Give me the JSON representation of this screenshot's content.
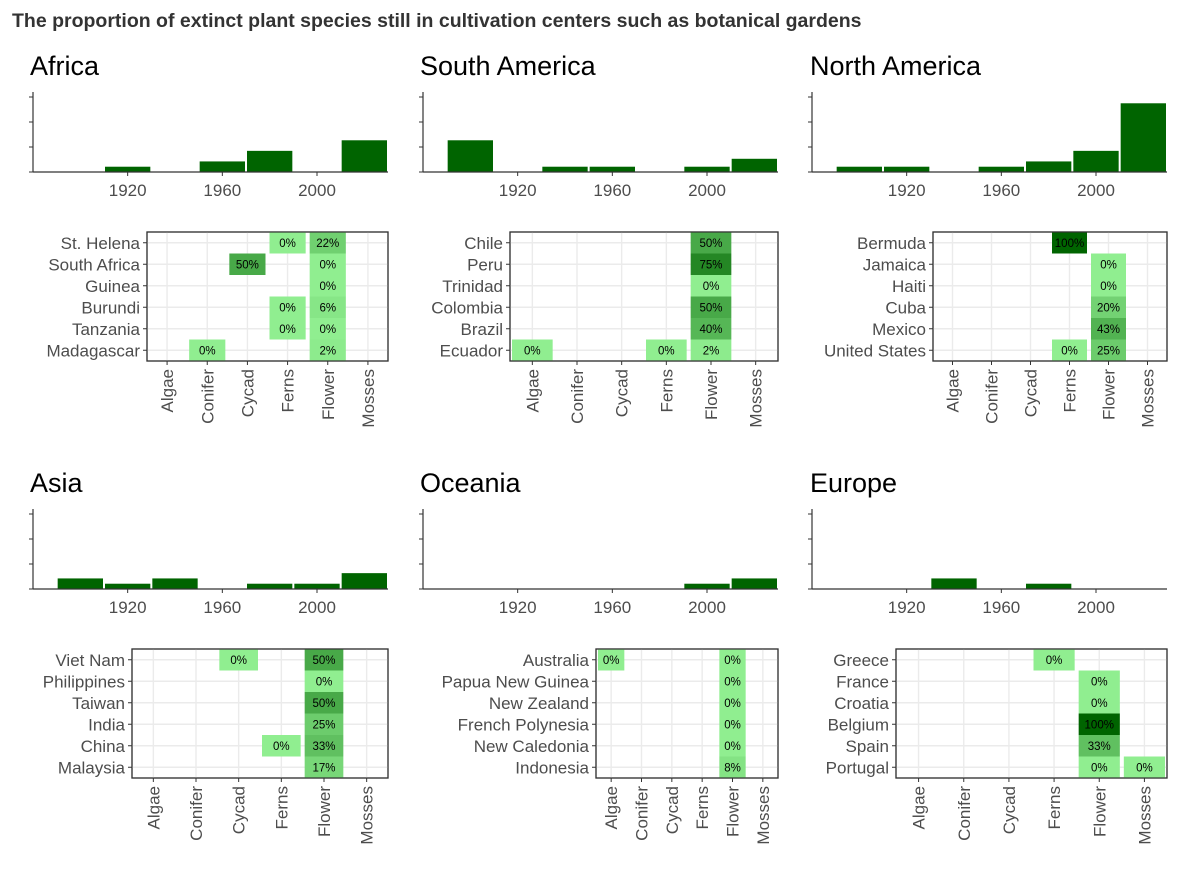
{
  "title": "The proportion of extinct plant species still in cultivation centers such as botanical gardens",
  "colors": {
    "bar": "#006400",
    "grid": "#ebebeb",
    "axis": "#333333",
    "scale": [
      "#90ee90",
      "#006400"
    ]
  },
  "chart_data": [
    {
      "region": "Africa",
      "hist": {
        "type": "bar",
        "decades": [
          1910,
          1950,
          1970,
          2010
        ],
        "counts": [
          1,
          2,
          4,
          6
        ]
      },
      "heatmap": {
        "type": "heatmap",
        "rows": [
          "St. Helena",
          "South Africa",
          "Guinea",
          "Burundi",
          "Tanzania",
          "Madagascar"
        ],
        "cols": [
          "Algae",
          "Conifer",
          "Cycad",
          "Ferns",
          "Flower",
          "Mosses"
        ],
        "cells": [
          {
            "row": "St. Helena",
            "col": "Ferns",
            "value": 0,
            "label": "0%"
          },
          {
            "row": "St. Helena",
            "col": "Flower",
            "value": 22,
            "label": "22%"
          },
          {
            "row": "South Africa",
            "col": "Cycad",
            "value": 50,
            "label": "50%"
          },
          {
            "row": "South Africa",
            "col": "Flower",
            "value": 0,
            "label": "0%"
          },
          {
            "row": "Guinea",
            "col": "Flower",
            "value": 0,
            "label": "0%"
          },
          {
            "row": "Burundi",
            "col": "Ferns",
            "value": 0,
            "label": "0%"
          },
          {
            "row": "Burundi",
            "col": "Flower",
            "value": 6,
            "label": "6%"
          },
          {
            "row": "Tanzania",
            "col": "Ferns",
            "value": 0,
            "label": "0%"
          },
          {
            "row": "Tanzania",
            "col": "Flower",
            "value": 0,
            "label": "0%"
          },
          {
            "row": "Madagascar",
            "col": "Conifer",
            "value": 0,
            "label": "0%"
          },
          {
            "row": "Madagascar",
            "col": "Flower",
            "value": 2,
            "label": "2%"
          }
        ]
      }
    },
    {
      "region": "South America",
      "hist": {
        "type": "bar",
        "decades": [
          1890,
          1930,
          1950,
          1990,
          2010
        ],
        "counts": [
          6,
          1,
          1,
          1,
          2.5
        ]
      },
      "heatmap": {
        "type": "heatmap",
        "rows": [
          "Chile",
          "Peru",
          "Trinidad",
          "Colombia",
          "Brazil",
          "Ecuador"
        ],
        "cols": [
          "Algae",
          "Conifer",
          "Cycad",
          "Ferns",
          "Flower",
          "Mosses"
        ],
        "cells": [
          {
            "row": "Chile",
            "col": "Flower",
            "value": 50,
            "label": "50%"
          },
          {
            "row": "Peru",
            "col": "Flower",
            "value": 75,
            "label": "75%"
          },
          {
            "row": "Trinidad",
            "col": "Flower",
            "value": 0,
            "label": "0%"
          },
          {
            "row": "Colombia",
            "col": "Flower",
            "value": 50,
            "label": "50%"
          },
          {
            "row": "Brazil",
            "col": "Flower",
            "value": 40,
            "label": "40%"
          },
          {
            "row": "Ecuador",
            "col": "Algae",
            "value": 0,
            "label": "0%"
          },
          {
            "row": "Ecuador",
            "col": "Ferns",
            "value": 0,
            "label": "0%"
          },
          {
            "row": "Ecuador",
            "col": "Flower",
            "value": 2,
            "label": "2%"
          }
        ]
      }
    },
    {
      "region": "North America",
      "hist": {
        "type": "bar",
        "decades": [
          1890,
          1910,
          1950,
          1970,
          1990,
          2010
        ],
        "counts": [
          1,
          1,
          1,
          2,
          4,
          13
        ]
      },
      "heatmap": {
        "type": "heatmap",
        "rows": [
          "Bermuda",
          "Jamaica",
          "Haiti",
          "Cuba",
          "Mexico",
          "United States"
        ],
        "cols": [
          "Algae",
          "Conifer",
          "Cycad",
          "Ferns",
          "Flower",
          "Mosses"
        ],
        "cells": [
          {
            "row": "Bermuda",
            "col": "Ferns",
            "value": 100,
            "label": "100%"
          },
          {
            "row": "Jamaica",
            "col": "Flower",
            "value": 0,
            "label": "0%"
          },
          {
            "row": "Haiti",
            "col": "Flower",
            "value": 0,
            "label": "0%"
          },
          {
            "row": "Cuba",
            "col": "Flower",
            "value": 20,
            "label": "20%"
          },
          {
            "row": "Mexico",
            "col": "Flower",
            "value": 43,
            "label": "43%"
          },
          {
            "row": "United States",
            "col": "Ferns",
            "value": 0,
            "label": "0%"
          },
          {
            "row": "United States",
            "col": "Flower",
            "value": 25,
            "label": "25%"
          }
        ]
      }
    },
    {
      "region": "Asia",
      "hist": {
        "type": "bar",
        "decades": [
          1890,
          1910,
          1930,
          1970,
          1990,
          2010
        ],
        "counts": [
          2,
          1,
          2,
          1,
          1,
          3
        ]
      },
      "heatmap": {
        "type": "heatmap",
        "rows": [
          "Viet Nam",
          "Philippines",
          "Taiwan",
          "India",
          "China",
          "Malaysia"
        ],
        "cols": [
          "Algae",
          "Conifer",
          "Cycad",
          "Ferns",
          "Flower",
          "Mosses"
        ],
        "cells": [
          {
            "row": "Viet Nam",
            "col": "Cycad",
            "value": 0,
            "label": "0%"
          },
          {
            "row": "Viet Nam",
            "col": "Flower",
            "value": 50,
            "label": "50%"
          },
          {
            "row": "Philippines",
            "col": "Flower",
            "value": 0,
            "label": "0%"
          },
          {
            "row": "Taiwan",
            "col": "Flower",
            "value": 50,
            "label": "50%"
          },
          {
            "row": "India",
            "col": "Flower",
            "value": 25,
            "label": "25%"
          },
          {
            "row": "China",
            "col": "Ferns",
            "value": 0,
            "label": "0%"
          },
          {
            "row": "China",
            "col": "Flower",
            "value": 33,
            "label": "33%"
          },
          {
            "row": "Malaysia",
            "col": "Flower",
            "value": 17,
            "label": "17%"
          }
        ]
      }
    },
    {
      "region": "Oceania",
      "hist": {
        "type": "bar",
        "decades": [
          1990,
          2010
        ],
        "counts": [
          1,
          2
        ]
      },
      "heatmap": {
        "type": "heatmap",
        "rows": [
          "Australia",
          "Papua New Guinea",
          "New Zealand",
          "French Polynesia",
          "New Caledonia",
          "Indonesia"
        ],
        "cols": [
          "Algae",
          "Conifer",
          "Cycad",
          "Ferns",
          "Flower",
          "Mosses"
        ],
        "cells": [
          {
            "row": "Australia",
            "col": "Algae",
            "value": 0,
            "label": "0%"
          },
          {
            "row": "Australia",
            "col": "Flower",
            "value": 0,
            "label": "0%"
          },
          {
            "row": "Papua New Guinea",
            "col": "Flower",
            "value": 0,
            "label": "0%"
          },
          {
            "row": "New Zealand",
            "col": "Flower",
            "value": 0,
            "label": "0%"
          },
          {
            "row": "French Polynesia",
            "col": "Flower",
            "value": 0,
            "label": "0%"
          },
          {
            "row": "New Caledonia",
            "col": "Flower",
            "value": 0,
            "label": "0%"
          },
          {
            "row": "Indonesia",
            "col": "Flower",
            "value": 8,
            "label": "8%"
          }
        ]
      }
    },
    {
      "region": "Europe",
      "hist": {
        "type": "bar",
        "decades": [
          1930,
          1970
        ],
        "counts": [
          2,
          1
        ]
      },
      "heatmap": {
        "type": "heatmap",
        "rows": [
          "Greece",
          "France",
          "Croatia",
          "Belgium",
          "Spain",
          "Portugal"
        ],
        "cols": [
          "Algae",
          "Conifer",
          "Cycad",
          "Ferns",
          "Flower",
          "Mosses"
        ],
        "cells": [
          {
            "row": "Greece",
            "col": "Ferns",
            "value": 0,
            "label": "0%"
          },
          {
            "row": "France",
            "col": "Flower",
            "value": 0,
            "label": "0%"
          },
          {
            "row": "Croatia",
            "col": "Flower",
            "value": 0,
            "label": "0%"
          },
          {
            "row": "Belgium",
            "col": "Flower",
            "value": 100,
            "label": "100%"
          },
          {
            "row": "Spain",
            "col": "Flower",
            "value": 33,
            "label": "33%"
          },
          {
            "row": "Portugal",
            "col": "Flower",
            "value": 0,
            "label": "0%"
          },
          {
            "row": "Portugal",
            "col": "Mosses",
            "value": 0,
            "label": "0%"
          }
        ]
      }
    }
  ],
  "x_ticks": [
    "1920",
    "1960",
    "2000"
  ],
  "x_tick_values": [
    1920,
    1960,
    2000
  ],
  "x_range": [
    1880,
    2030
  ],
  "hist_max": 14
}
